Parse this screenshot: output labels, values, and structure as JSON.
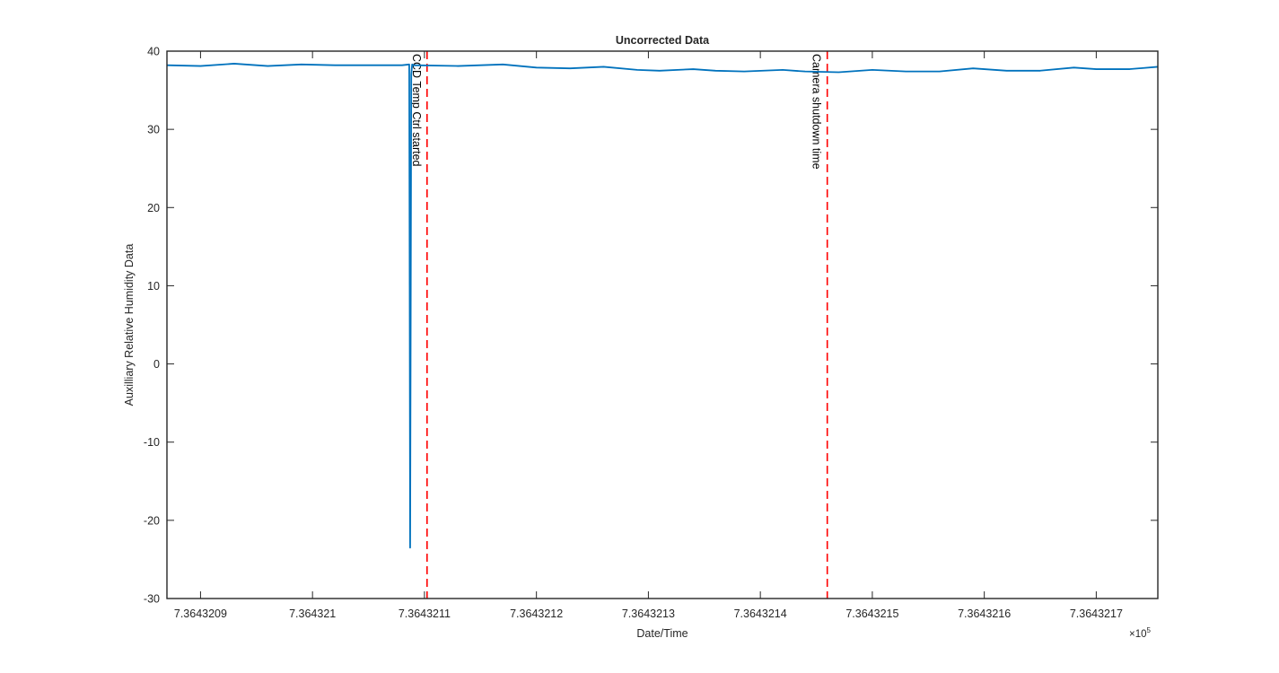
{
  "chart_data": {
    "type": "line",
    "title": "Uncorrected Data",
    "xlabel": "Date/Time",
    "ylabel": "Auxilliary Relative Humidity Data",
    "x_exponent_label": "×10",
    "x_exponent_power": "5",
    "x_scale_factor": 100000,
    "xlim": [
      7.36432087,
      7.364321755
    ],
    "ylim": [
      -30,
      40
    ],
    "grid": false,
    "box": true,
    "x_ticks": [
      {
        "value": 7.3643209,
        "label": "7.3643209"
      },
      {
        "value": 7.364321,
        "label": "7.364321"
      },
      {
        "value": 7.3643211,
        "label": "7.3643211"
      },
      {
        "value": 7.3643212,
        "label": "7.3643212"
      },
      {
        "value": 7.3643213,
        "label": "7.3643213"
      },
      {
        "value": 7.3643214,
        "label": "7.3643214"
      },
      {
        "value": 7.3643215,
        "label": "7.3643215"
      },
      {
        "value": 7.3643216,
        "label": "7.3643216"
      },
      {
        "value": 7.3643217,
        "label": "7.3643217"
      }
    ],
    "y_ticks": [
      {
        "value": 40,
        "label": "40"
      },
      {
        "value": 30,
        "label": "30"
      },
      {
        "value": 20,
        "label": "20"
      },
      {
        "value": 10,
        "label": "10"
      },
      {
        "value": 0,
        "label": "0"
      },
      {
        "value": -10,
        "label": "-10"
      },
      {
        "value": -20,
        "label": "-20"
      },
      {
        "value": -30,
        "label": "-30"
      }
    ],
    "series": [
      {
        "color": "#0072bd",
        "x": [
          7.36432087,
          7.3643209,
          7.36432093,
          7.36432096,
          7.36432099,
          7.36432102,
          7.36432105,
          7.36432108,
          7.3643210864,
          7.3643210868,
          7.3643210872,
          7.3643210876,
          7.3643210882,
          7.364321089,
          7.3643210902,
          7.36432113,
          7.36432117,
          7.3643212,
          7.36432123,
          7.36432126,
          7.36432129,
          7.36432131,
          7.36432134,
          7.36432136,
          7.3643213856,
          7.36432142,
          7.36432144,
          7.36432147,
          7.3643215,
          7.36432153,
          7.36432156,
          7.36432159,
          7.36432162,
          7.36432165,
          7.36432168,
          7.3643217,
          7.36432173,
          7.364321755
        ],
        "y": [
          38.2,
          38.1,
          38.4,
          38.1,
          38.3,
          38.2,
          38.2,
          38.2,
          38.3,
          10,
          -23.5,
          0,
          37,
          38.3,
          38.2,
          38.1,
          38.3,
          37.9,
          37.8,
          38.0,
          37.6,
          37.5,
          37.7,
          37.5,
          37.4,
          37.6,
          37.4,
          37.3,
          37.6,
          37.4,
          37.4,
          37.8,
          37.5,
          37.5,
          37.9,
          37.7,
          37.7,
          38.0
        ]
      }
    ],
    "annotations": [
      {
        "x": 7.36432110232,
        "label": "CCD Temp Ctrl started",
        "color": "#ff0000",
        "style": "dashed"
      },
      {
        "x": 7.36432145976,
        "label": "Camera shutdown time",
        "color": "#ff0000",
        "style": "dashed"
      }
    ]
  }
}
